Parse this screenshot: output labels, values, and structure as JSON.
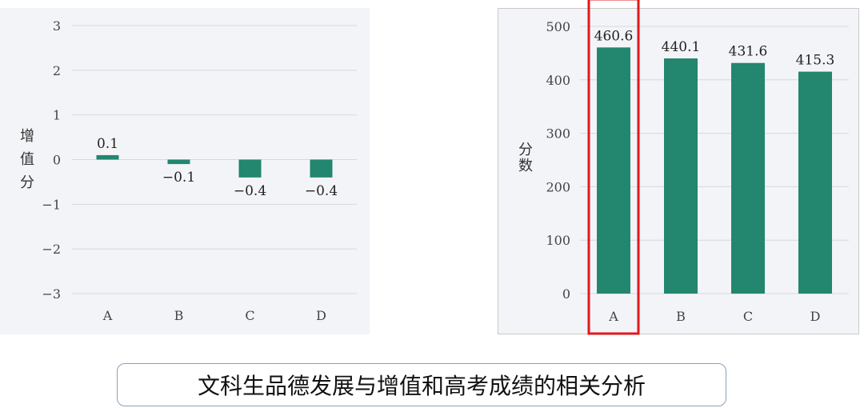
{
  "caption": "文科生品德发展与增值和高考成绩的相关分析",
  "colors": {
    "bar": "#23866f",
    "highlight": "#e0191b",
    "grid": "#d6d8de"
  },
  "chart_data": [
    {
      "type": "bar",
      "categories": [
        "A",
        "B",
        "C",
        "D"
      ],
      "values": [
        0.1,
        -0.1,
        -0.4,
        -0.4
      ],
      "value_labels": [
        "0.1",
        "−0.1",
        "−0.4",
        "−0.4"
      ],
      "ylabel": "增值分",
      "ylim": [
        -3,
        3
      ],
      "yticks": [
        "3",
        "2",
        "1",
        "0",
        "−1",
        "−2",
        "−3"
      ],
      "grid": true
    },
    {
      "type": "bar",
      "categories": [
        "A",
        "B",
        "C",
        "D"
      ],
      "values": [
        460.6,
        440.1,
        431.6,
        415.3
      ],
      "value_labels": [
        "460.6",
        "440.1",
        "431.6",
        "415.3"
      ],
      "ylabel": "分数",
      "ylim": [
        0,
        500
      ],
      "yticks": [
        "500",
        "400",
        "300",
        "200",
        "100",
        "0"
      ],
      "grid": true,
      "highlighted_category": "A"
    }
  ]
}
